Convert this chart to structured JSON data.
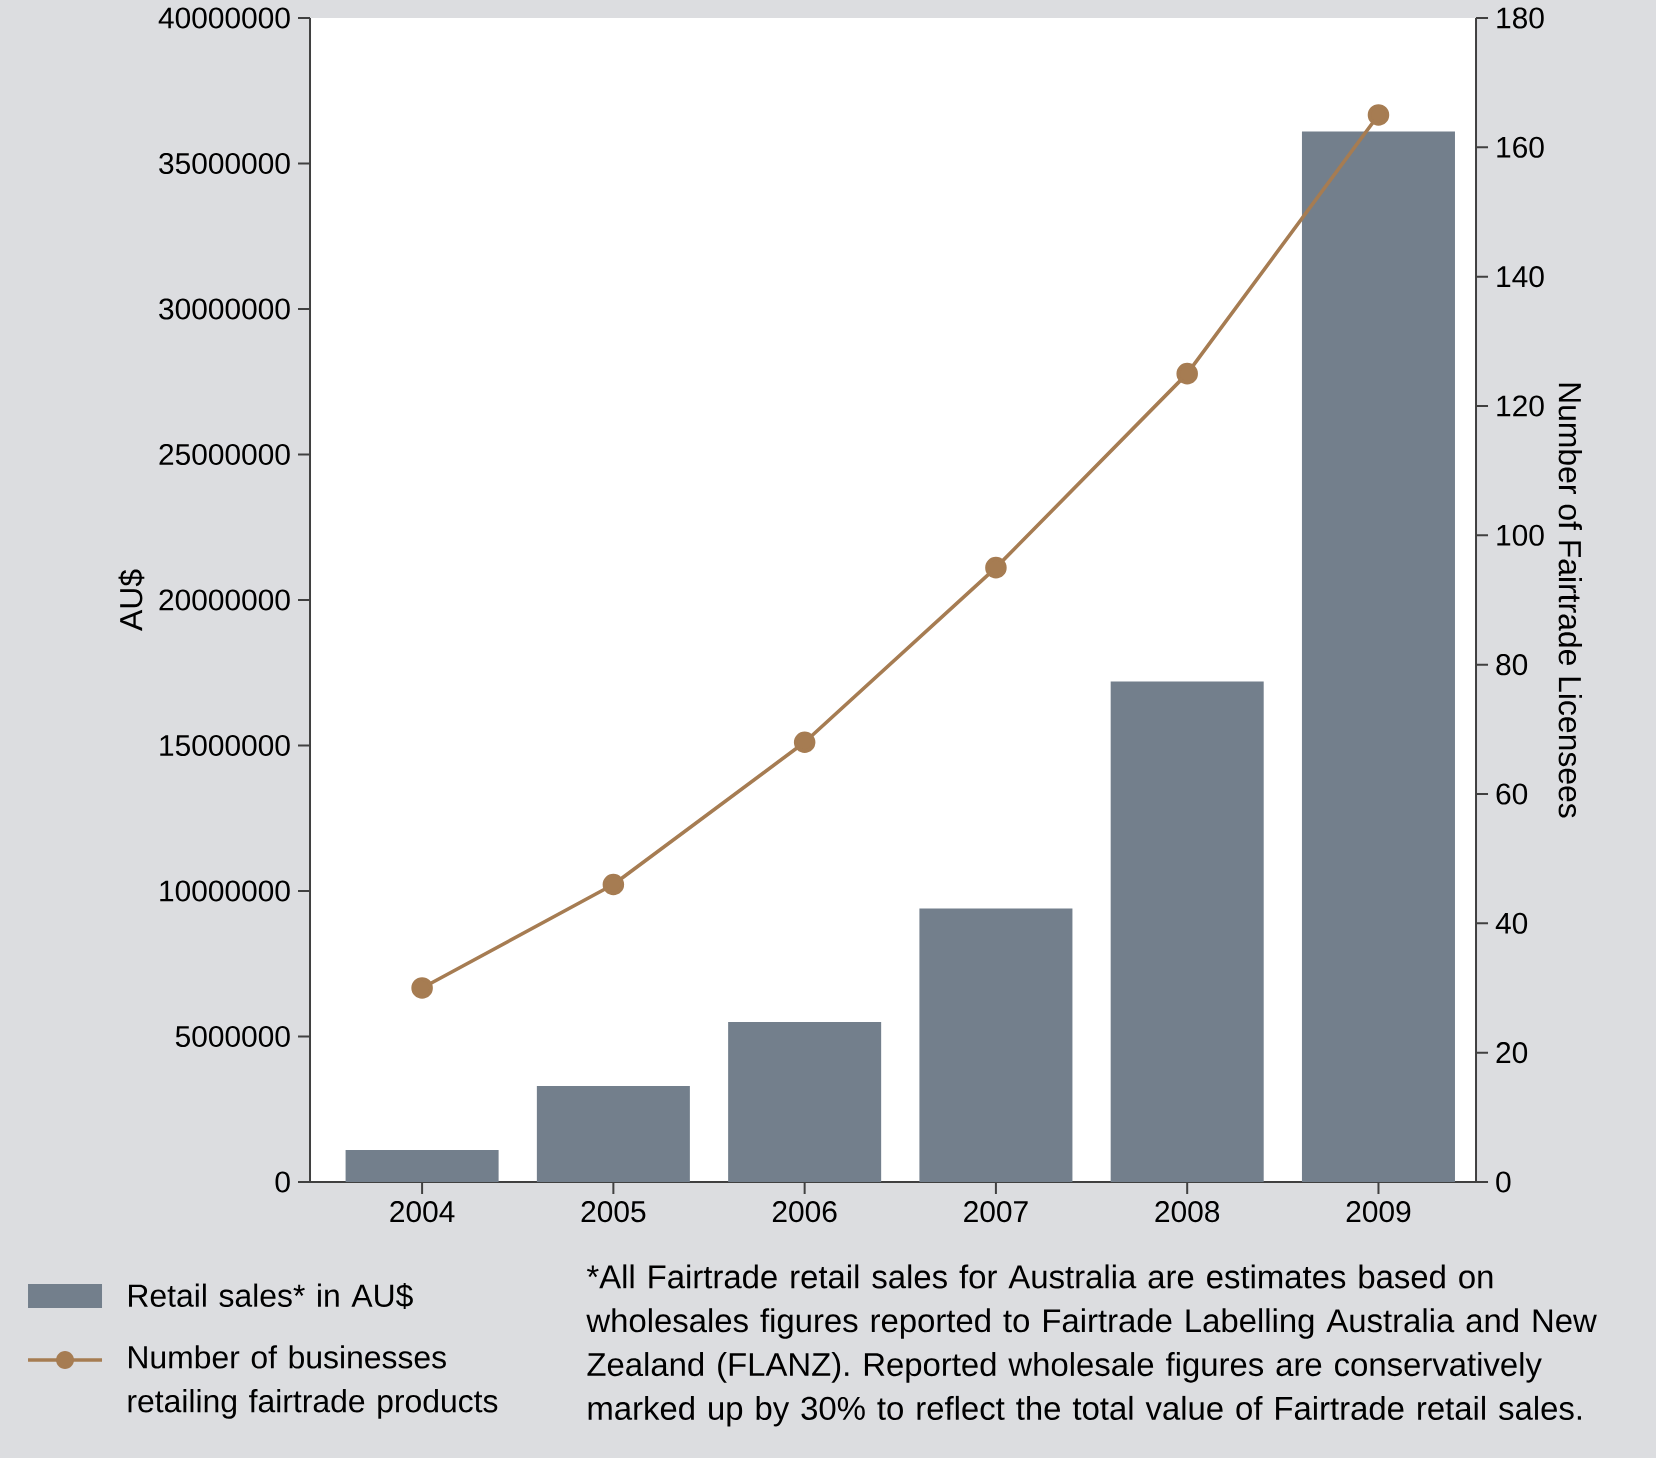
{
  "chart_data": {
    "type": "bar",
    "categories": [
      "2004",
      "2005",
      "2006",
      "2007",
      "2008",
      "2009"
    ],
    "series": [
      {
        "name": "Retail sales* in AU$",
        "color": "#737f8c",
        "values": [
          1100000,
          3300000,
          5500000,
          9400000,
          17200000,
          36100000
        ]
      },
      {
        "name": "Number of businesses retailing fairtrade products",
        "type": "line",
        "axis": "y2",
        "color": "#a67c52",
        "values": [
          30,
          46,
          68,
          95,
          125,
          165
        ]
      }
    ],
    "ylabel": "AU$",
    "y2label": "Number of Fairtrade Licensees",
    "ylim": [
      0,
      40000000
    ],
    "yticks": [
      0,
      5000000,
      10000000,
      15000000,
      20000000,
      25000000,
      30000000,
      35000000,
      40000000
    ],
    "y2lim": [
      0,
      180
    ],
    "y2ticks": [
      0,
      20,
      40,
      60,
      80,
      100,
      120,
      140,
      160,
      180
    ],
    "marker": "circle",
    "legend": "bottom left",
    "grid": false,
    "annotations": [
      "*All Fairtrade retail sales for Australia are estimates based on wholesales figures reported to Fairtrade Labelling Australia and New Zealand (FLANZ). Reported wholesale figures are conservatively marked up by 30% to reflect the total value of Fairtrade retail sales."
    ]
  }
}
